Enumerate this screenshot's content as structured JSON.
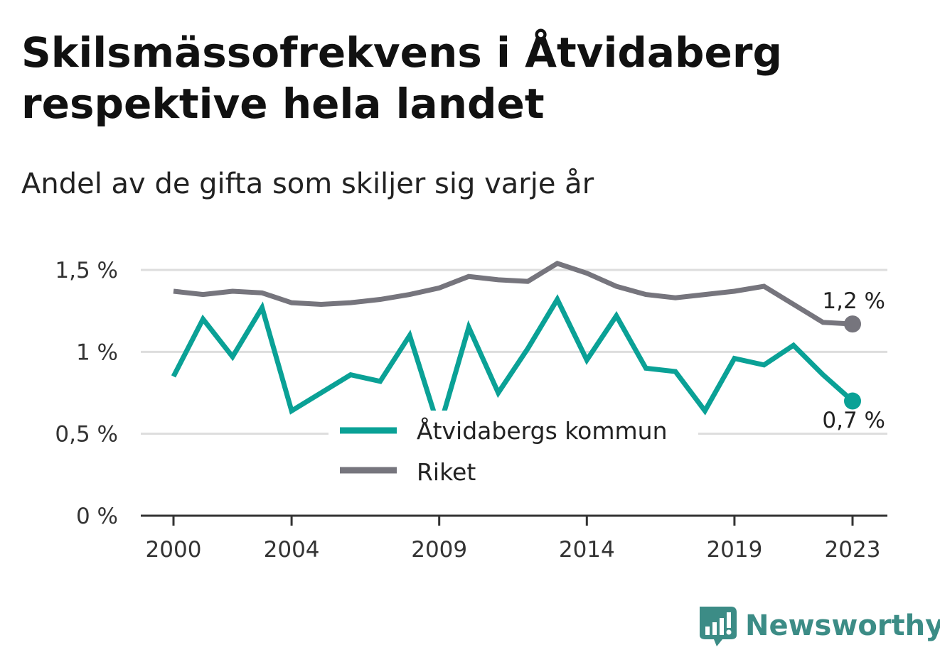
{
  "title": "Skilsmässofrekvens i Åtvidaberg respektive hela landet",
  "subtitle": "Andel av de gifta som skiljer sig varje år",
  "brand": "Newsworthy",
  "colors": {
    "atvidaberg": "#0aa196",
    "riket": "#76757d",
    "grid": "#dddddd",
    "axis": "#333333"
  },
  "chart_data": {
    "type": "line",
    "x": [
      2000,
      2001,
      2002,
      2003,
      2004,
      2005,
      2006,
      2007,
      2008,
      2009,
      2010,
      2011,
      2012,
      2013,
      2014,
      2015,
      2016,
      2017,
      2018,
      2019,
      2020,
      2021,
      2022,
      2023
    ],
    "x_ticks": [
      2000,
      2004,
      2009,
      2014,
      2019,
      2023
    ],
    "y_ticks": [
      0,
      0.5,
      1,
      1.5
    ],
    "y_tick_labels": [
      "0 %",
      "0,5 %",
      "1 %",
      "1,5 %"
    ],
    "ylim": [
      0,
      1.5
    ],
    "grid": true,
    "legend_position": "center",
    "series": [
      {
        "name": "Åtvidabergs kommun",
        "color": "#0aa196",
        "values": [
          0.85,
          1.2,
          0.97,
          1.27,
          0.64,
          0.75,
          0.86,
          0.82,
          1.1,
          0.53,
          1.15,
          0.75,
          1.02,
          1.32,
          0.95,
          1.22,
          0.9,
          0.88,
          0.64,
          0.96,
          0.92,
          1.04,
          0.86,
          0.7
        ],
        "end_label": "0,7 %"
      },
      {
        "name": "Riket",
        "color": "#76757d",
        "values": [
          1.37,
          1.35,
          1.37,
          1.36,
          1.3,
          1.29,
          1.3,
          1.32,
          1.35,
          1.39,
          1.46,
          1.44,
          1.43,
          1.54,
          1.48,
          1.4,
          1.35,
          1.33,
          1.35,
          1.37,
          1.4,
          1.29,
          1.18,
          1.17
        ],
        "end_label": "1,2 %"
      }
    ]
  }
}
